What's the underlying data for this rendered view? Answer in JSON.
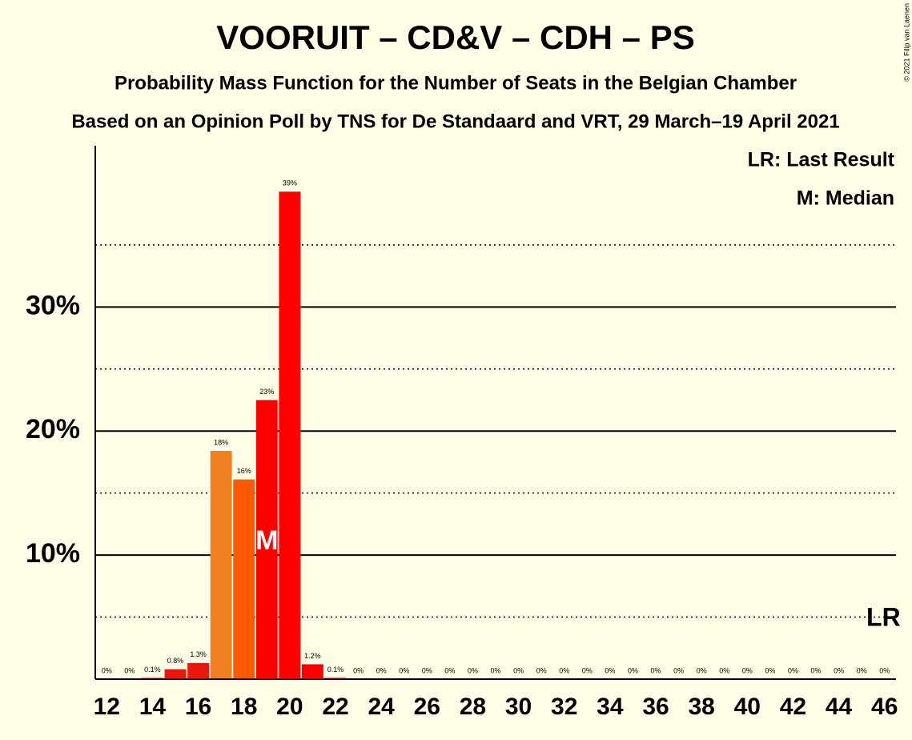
{
  "chart_data": {
    "type": "bar",
    "title": "VOORUIT – CD&V – CDH – PS",
    "subtitle": "Probability Mass Function for the Number of Seats in the Belgian Chamber",
    "subtitle2": "Based on an Opinion Poll by TNS for De Standaard and VRT, 29 March–19 April 2021",
    "copyright": "© 2021 Filip van Laenen",
    "legend": [
      "LR: Last Result",
      "M: Median"
    ],
    "x": [
      12,
      13,
      14,
      15,
      16,
      17,
      18,
      19,
      20,
      21,
      22,
      23,
      24,
      25,
      26,
      27,
      28,
      29,
      30,
      31,
      32,
      33,
      34,
      35,
      36,
      37,
      38,
      39,
      40,
      41,
      42,
      43,
      44,
      45,
      46
    ],
    "values": [
      0,
      0,
      0.1,
      0.8,
      1.3,
      18.4,
      16.1,
      22.5,
      39.3,
      1.2,
      0.1,
      0,
      0,
      0,
      0,
      0,
      0,
      0,
      0,
      0,
      0,
      0,
      0,
      0,
      0,
      0,
      0,
      0,
      0,
      0,
      0,
      0,
      0,
      0,
      0
    ],
    "value_labels": [
      "0%",
      "0%",
      "0.1%",
      "0.8%",
      "1.3%",
      "18%",
      "16%",
      "23%",
      "39%",
      "1.2%",
      "0.1%",
      "0%",
      "0%",
      "0%",
      "0%",
      "0%",
      "0%",
      "0%",
      "0%",
      "0%",
      "0%",
      "0%",
      "0%",
      "0%",
      "0%",
      "0%",
      "0%",
      "0%",
      "0%",
      "0%",
      "0%",
      "0%",
      "0%",
      "0%",
      "0%"
    ],
    "colors": [
      "#e8190e",
      "#e8190e",
      "#e8190e",
      "#e8190e",
      "#e8190e",
      "#f08020",
      "#ff5a00",
      "#ff0000",
      "#ff0000",
      "#ff0000",
      "#ff0000",
      "#ff0000",
      "#ff0000",
      "#ff0000",
      "#ff0000",
      "#ff0000",
      "#ff0000",
      "#ff0000",
      "#ff0000",
      "#ff0000",
      "#ff0000",
      "#ff0000",
      "#ff0000",
      "#ff0000",
      "#ff0000",
      "#ff0000",
      "#ff0000",
      "#ff0000",
      "#ff0000",
      "#ff0000",
      "#ff0000",
      "#ff0000",
      "#ff0000",
      "#ff0000",
      "#ff0000"
    ],
    "xlim": [
      11.5,
      46.5
    ],
    "xticks": [
      12,
      14,
      16,
      18,
      20,
      22,
      24,
      26,
      28,
      30,
      32,
      34,
      36,
      38,
      40,
      42,
      44,
      46
    ],
    "ylim": [
      0,
      43
    ],
    "yticks": [
      {
        "value": 10,
        "label": "10%"
      },
      {
        "value": 20,
        "label": "20%"
      },
      {
        "value": 30,
        "label": "30%"
      }
    ],
    "minor_yticks": [
      5,
      15,
      25,
      35
    ],
    "median": 19,
    "median_label": "M",
    "last_result": 46,
    "last_result_label": "LR"
  }
}
